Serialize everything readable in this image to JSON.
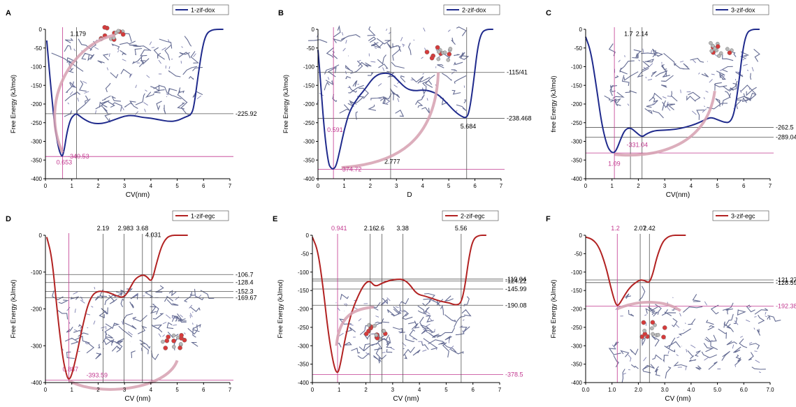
{
  "figure": {
    "colors": {
      "dox": "#1f2a8c",
      "egc": "#b22222",
      "magenta": "#c2388f",
      "arrow": "#d6a0b0",
      "ink": "#000000",
      "ref": "#555555"
    },
    "molecule_icon": "zif-framework-molecule-graphic"
  },
  "chart_data": [
    {
      "type": "line",
      "panel_letter": "A",
      "xlabel": "CV(nm)",
      "ylabel": "Free Energy (kJ/mol)",
      "xlim": [
        0,
        7
      ],
      "ylim": [
        -400,
        0
      ],
      "xticks": [
        "0",
        "1",
        "2",
        "3",
        "4",
        "5",
        "6",
        "7"
      ],
      "yticks": [
        "-400",
        "-350",
        "-300",
        "-250",
        "-200",
        "-150",
        "-100",
        "-50",
        "0"
      ],
      "legend": "top-right",
      "series": [
        {
          "name": "1-zif-dox",
          "color": "#1f2a8c",
          "x": [
            0.05,
            0.2,
            0.35,
            0.5,
            0.6,
            0.65,
            0.72,
            0.82,
            0.95,
            1.1,
            1.2,
            1.4,
            1.7,
            2.0,
            2.3,
            2.7,
            3.0,
            3.3,
            3.7,
            4.0,
            4.3,
            4.7,
            5.0,
            5.3,
            5.55,
            5.65,
            5.8,
            5.95,
            6.1,
            6.3,
            6.5,
            6.75
          ],
          "y": [
            -30,
            -150,
            -260,
            -320,
            -338,
            -340,
            -320,
            -275,
            -240,
            -228,
            -226,
            -238,
            -250,
            -253,
            -250,
            -240,
            -232,
            -230,
            -236,
            -238,
            -242,
            -247,
            -245,
            -235,
            -228,
            -200,
            -120,
            -50,
            -12,
            -2,
            0,
            0
          ]
        }
      ],
      "vlines": [
        {
          "x": 0.653,
          "label": "0.653",
          "color": "#c2388f",
          "label_y": -362
        },
        {
          "x": 1.179,
          "label": "1.179",
          "color": "#000000",
          "label_y": -18
        }
      ],
      "hlines": [
        {
          "y": -225.92,
          "label": "-225.92",
          "color": "#000000"
        },
        {
          "y": -340.53,
          "label": "",
          "color": "#c2388f"
        }
      ],
      "annotations": [
        {
          "x": 0.85,
          "y": -340.53,
          "text": "-340.53",
          "color": "#c2388f"
        }
      ]
    },
    {
      "type": "line",
      "panel_letter": "B",
      "xlabel": "D",
      "ylabel": "Free Energy (kJ/mol)",
      "xlim": [
        0,
        7
      ],
      "ylim": [
        -400,
        0
      ],
      "xticks": [
        "0",
        "1",
        "2",
        "3",
        "4",
        "5",
        "6",
        "7"
      ],
      "yticks": [
        "-400",
        "-350",
        "-300",
        "-250",
        "-200",
        "-150",
        "-100",
        "-50",
        "0"
      ],
      "legend": "top-right",
      "series": [
        {
          "name": "2-zif-dox",
          "color": "#1f2a8c",
          "x": [
            0.0,
            0.1,
            0.25,
            0.4,
            0.5,
            0.591,
            0.7,
            0.85,
            1.0,
            1.2,
            1.5,
            1.8,
            2.1,
            2.4,
            2.8,
            3.1,
            3.4,
            3.7,
            4.0,
            4.3,
            4.6,
            4.9,
            5.2,
            5.45,
            5.684,
            5.8,
            5.95,
            6.1,
            6.25,
            6.45,
            6.7
          ],
          "y": [
            -55,
            -140,
            -280,
            -360,
            -372,
            -374.72,
            -365,
            -320,
            -270,
            -220,
            -185,
            -160,
            -130,
            -117,
            -118,
            -140,
            -160,
            -165,
            -162,
            -165,
            -175,
            -195,
            -218,
            -232,
            -238.468,
            -215,
            -140,
            -50,
            -8,
            0,
            0
          ]
        }
      ],
      "vlines": [
        {
          "x": 0.591,
          "label": "0.591",
          "color": "#c2388f",
          "label_y": -275
        },
        {
          "x": 2.777,
          "label": "2.777",
          "color": "#000000",
          "label_y": -360
        },
        {
          "x": 5.684,
          "label": "5.684",
          "color": "#000000",
          "label_y": -265
        }
      ],
      "hlines": [
        {
          "y": -115.41,
          "label": "-115/41",
          "color": "#000000"
        },
        {
          "y": -238.468,
          "label": "-238.468",
          "color": "#000000"
        },
        {
          "y": -374.72,
          "label": "",
          "color": "#c2388f"
        }
      ],
      "annotations": [
        {
          "x": 0.85,
          "y": -374.72,
          "text": "-374.72",
          "color": "#c2388f"
        }
      ]
    },
    {
      "type": "line",
      "panel_letter": "C",
      "xlabel": "CV(nm)",
      "ylabel": "free Energy (kJ/mol)",
      "xlim": [
        0,
        7
      ],
      "ylim": [
        -400,
        0
      ],
      "xticks": [
        "0",
        "1",
        "2",
        "3",
        "4",
        "5",
        "6",
        "7"
      ],
      "yticks": [
        "-400",
        "-350",
        "-300",
        "-250",
        "-200",
        "-150",
        "-100",
        "-50",
        "0"
      ],
      "legend": "top-right",
      "series": [
        {
          "name": "3-zif-dox",
          "color": "#1f2a8c",
          "x": [
            0.0,
            0.2,
            0.4,
            0.6,
            0.8,
            0.95,
            1.09,
            1.2,
            1.35,
            1.5,
            1.7,
            1.9,
            2.14,
            2.3,
            2.6,
            3.0,
            3.4,
            3.8,
            4.2,
            4.5,
            4.75,
            5.0,
            5.3,
            5.5,
            5.65,
            5.8,
            5.95,
            6.1,
            6.3,
            6.6
          ],
          "y": [
            -20,
            -60,
            -150,
            -250,
            -310,
            -328,
            -331.04,
            -318,
            -290,
            -268,
            -263,
            -275,
            -289.04,
            -280,
            -271,
            -270,
            -268,
            -262,
            -253,
            -243,
            -235,
            -242,
            -250,
            -248,
            -220,
            -150,
            -60,
            -10,
            0,
            0
          ]
        }
      ],
      "vlines": [
        {
          "x": 1.09,
          "label": "1.09",
          "color": "#c2388f",
          "label_y": -365
        },
        {
          "x": 1.7,
          "label": "1.7",
          "color": "#000000",
          "label_y": -18
        },
        {
          "x": 2.14,
          "label": "2.14",
          "color": "#000000",
          "label_y": -18
        }
      ],
      "hlines": [
        {
          "y": -262.5,
          "label": "-262.5",
          "color": "#000000"
        },
        {
          "y": -289.04,
          "label": "-289.04",
          "color": "#000000"
        },
        {
          "y": -331.04,
          "label": "",
          "color": "#c2388f"
        }
      ],
      "annotations": [
        {
          "x": 1.55,
          "y": -309,
          "text": "-331.04",
          "color": "#c2388f"
        }
      ]
    },
    {
      "type": "line",
      "panel_letter": "D",
      "xlabel": "CV (nm)",
      "ylabel": "Free Energy (kJ/mol)",
      "xlim": [
        0,
        7
      ],
      "ylim": [
        -400,
        0
      ],
      "xticks": [
        "0",
        "1",
        "2",
        "3",
        "4",
        "5",
        "6",
        "7"
      ],
      "yticks": [
        "-400",
        "-300",
        "-200",
        "-100",
        "0"
      ],
      "legend": "top-right",
      "series": [
        {
          "name": "1-zif-egc",
          "color": "#b22222",
          "x": [
            0.05,
            0.25,
            0.45,
            0.65,
            0.8,
            0.887,
            1.0,
            1.2,
            1.4,
            1.6,
            1.8,
            2.0,
            2.19,
            2.4,
            2.7,
            2.983,
            3.2,
            3.4,
            3.68,
            3.85,
            4.031,
            4.2,
            4.4,
            4.6,
            4.8,
            5.0,
            5.2,
            5.4
          ],
          "y": [
            -5,
            -60,
            -210,
            -330,
            -380,
            -393.59,
            -380,
            -320,
            -250,
            -190,
            -160,
            -152,
            -152.3,
            -155,
            -165,
            -169.67,
            -145,
            -118,
            -106.7,
            -112,
            -128.4,
            -80,
            -30,
            -6,
            0,
            0,
            0,
            0
          ]
        }
      ],
      "vlines": [
        {
          "x": 0.887,
          "label": "0.887",
          "color": "#c2388f",
          "label_y": -370
        },
        {
          "x": 2.19,
          "label": "2.19",
          "color": "#000000",
          "label_y": 8
        },
        {
          "x": 2.983,
          "label": "2.983",
          "color": "#000000",
          "label_y": 8
        },
        {
          "x": 3.68,
          "label": "3.68",
          "color": "#000000",
          "label_y": 8
        },
        {
          "x": 4.031,
          "label": "4.031",
          "color": "#000000",
          "label_y": -5
        }
      ],
      "hlines": [
        {
          "y": -106.7,
          "label": "-106.7",
          "color": "#000000"
        },
        {
          "y": -128.4,
          "label": "-128.4",
          "color": "#000000"
        },
        {
          "y": -152.3,
          "label": "-152.3",
          "color": "#000000"
        },
        {
          "y": -169.67,
          "label": "-169.67",
          "color": "#000000"
        },
        {
          "y": -393.59,
          "label": "",
          "color": "#c2388f"
        }
      ],
      "annotations": [
        {
          "x": 1.55,
          "y": -380,
          "text": "-393.59",
          "color": "#c2388f"
        }
      ]
    },
    {
      "type": "line",
      "panel_letter": "E",
      "xlabel": "CV (nm)",
      "ylabel": "Free Energy (kJ/mol)",
      "xlim": [
        0,
        7
      ],
      "ylim": [
        -400,
        0
      ],
      "xticks": [
        "0",
        "1",
        "2",
        "3",
        "4",
        "5",
        "6",
        "7"
      ],
      "yticks": [
        "-400",
        "-350",
        "-300",
        "-250",
        "-200",
        "-150",
        "-100",
        "-50",
        "0"
      ],
      "legend": "top-right",
      "series": [
        {
          "name": "2-zif-egc",
          "color": "#b22222",
          "x": [
            0.0,
            0.2,
            0.4,
            0.6,
            0.8,
            0.941,
            1.05,
            1.25,
            1.5,
            1.8,
            2.0,
            2.16,
            2.35,
            2.6,
            2.9,
            3.2,
            3.38,
            3.6,
            3.9,
            4.2,
            4.5,
            4.8,
            5.1,
            5.35,
            5.56,
            5.7,
            5.85,
            6.0,
            6.2,
            6.5
          ],
          "y": [
            -5,
            -40,
            -140,
            -270,
            -355,
            -378.5,
            -350,
            -270,
            -200,
            -150,
            -128,
            -124.22,
            -140,
            -130,
            -122,
            -119.04,
            -120,
            -130,
            -160,
            -165,
            -172,
            -180,
            -183,
            -190.08,
            -185,
            -140,
            -60,
            -12,
            0,
            0
          ]
        }
      ],
      "vlines": [
        {
          "x": 0.941,
          "label": "0.941",
          "color": "#c2388f",
          "label_y": 8
        },
        {
          "x": 2.16,
          "label": "2.16",
          "color": "#000000",
          "label_y": 8
        },
        {
          "x": 2.6,
          "label": "2.6",
          "color": "#000000",
          "label_y": 8
        },
        {
          "x": 3.38,
          "label": "3.38",
          "color": "#000000",
          "label_y": 8
        },
        {
          "x": 5.56,
          "label": "5.56",
          "color": "#000000",
          "label_y": 8
        }
      ],
      "hlines": [
        {
          "y": -119.04,
          "label": "-119.04",
          "color": "#000000"
        },
        {
          "y": -124.22,
          "label": "-124.22",
          "color": "#000000"
        },
        {
          "y": -145.99,
          "label": "-145.99",
          "color": "#000000"
        },
        {
          "y": -190.08,
          "label": "-190.08",
          "color": "#000000"
        },
        {
          "y": -378.5,
          "label": "-378.5",
          "color": "#c2388f"
        }
      ],
      "annotations": []
    },
    {
      "type": "line",
      "panel_letter": "F",
      "xlabel": "CV (nm)",
      "ylabel": "Free Energy (kJ/mol)",
      "xlim": [
        0,
        7
      ],
      "ylim": [
        -400,
        0
      ],
      "xticks": [
        "0.0",
        "1.0",
        "2.0",
        "3.0",
        "4.0",
        "5.0",
        "6.0",
        "7.0"
      ],
      "yticks": [
        "-400",
        "-350",
        "-300",
        "-250",
        "-200",
        "-150",
        "-100",
        "-50",
        "0"
      ],
      "legend": "top-right",
      "series": [
        {
          "name": "3-zif-egc",
          "color": "#b22222",
          "x": [
            0.0,
            0.25,
            0.5,
            0.75,
            0.95,
            1.1,
            1.2,
            1.3,
            1.5,
            1.7,
            1.9,
            2.07,
            2.2,
            2.3,
            2.42,
            2.55,
            2.7,
            2.9,
            3.1,
            3.3,
            3.5,
            3.8
          ],
          "y": [
            -5,
            -10,
            -30,
            -80,
            -140,
            -180,
            -192.38,
            -185,
            -160,
            -140,
            -128,
            -121.27,
            -122,
            -126,
            -128.59,
            -105,
            -60,
            -20,
            -5,
            0,
            0,
            0
          ]
        }
      ],
      "vlines": [
        {
          "x": 1.2,
          "label": "1.2",
          "color": "#c2388f",
          "label_y": 8
        },
        {
          "x": 2.07,
          "label": "2.07",
          "color": "#000000",
          "label_y": 8
        },
        {
          "x": 2.42,
          "label": "2.42",
          "color": "#000000",
          "label_y": 8
        }
      ],
      "hlines": [
        {
          "y": -121.27,
          "label": "-121.27",
          "color": "#000000"
        },
        {
          "y": -128.59,
          "label": "-128.59",
          "color": "#000000"
        },
        {
          "y": -192.38,
          "label": "-192.38",
          "color": "#c2388f"
        }
      ],
      "annotations": []
    }
  ]
}
